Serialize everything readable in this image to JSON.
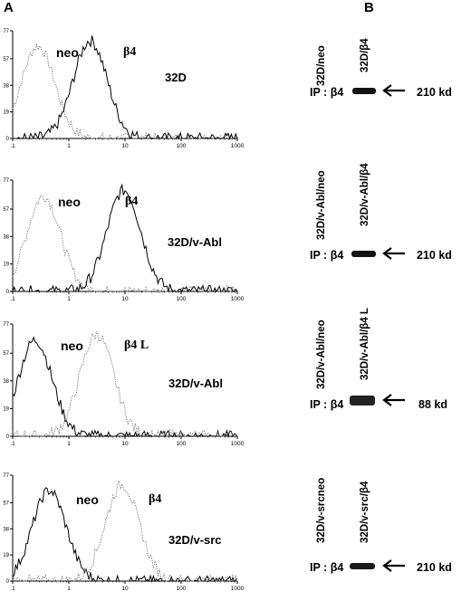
{
  "panel_a_letter": "A",
  "panel_b_letter": "B",
  "x_ticks": [
    ".1",
    "1",
    "10",
    "100",
    "1000"
  ],
  "y_ticks": [
    "77",
    "57",
    "38",
    "19",
    "0"
  ],
  "histograms": [
    {
      "condition": "32D",
      "neo_label": "neo",
      "b4_label": "β4",
      "neo_style": "dotted",
      "b4_style": "solid",
      "neo_peak_log": -0.55,
      "b4_peak_log": 0.38
    },
    {
      "condition": "32D/v-Abl",
      "neo_label": "neo",
      "b4_label": "β4",
      "neo_style": "dotted",
      "b4_style": "solid",
      "neo_peak_log": -0.45,
      "b4_peak_log": 0.98
    },
    {
      "condition": "32D/v-Abl",
      "neo_label": "neo",
      "b4_label": "β4 L",
      "neo_style": "solid",
      "b4_style": "dotted",
      "neo_peak_log": -0.6,
      "b4_peak_log": 0.5
    },
    {
      "condition": "32D/v-src",
      "neo_label": "neo",
      "b4_label": "β4",
      "neo_style": "solid",
      "b4_style": "dotted",
      "neo_peak_log": -0.35,
      "b4_peak_log": 0.95
    }
  ],
  "blots": [
    {
      "lane1": "32D/neo",
      "lane2": "32D/β4",
      "ip": "IP : β4",
      "kd": "210 kd"
    },
    {
      "lane1": "32D/v-Abl/neo",
      "lane2": "32D/v-Abl/β4",
      "ip": "IP : β4",
      "kd": "210 kd"
    },
    {
      "lane1": "32D/v-Abl/neo",
      "lane2": "32D/v-Abl/β4 L",
      "ip": "IP : β4",
      "kd": "88  kd"
    },
    {
      "lane1": "32D/v-srcneo",
      "lane2": "32D/v-src/β4",
      "ip": "IP : β4",
      "kd": "210 kd"
    }
  ]
}
